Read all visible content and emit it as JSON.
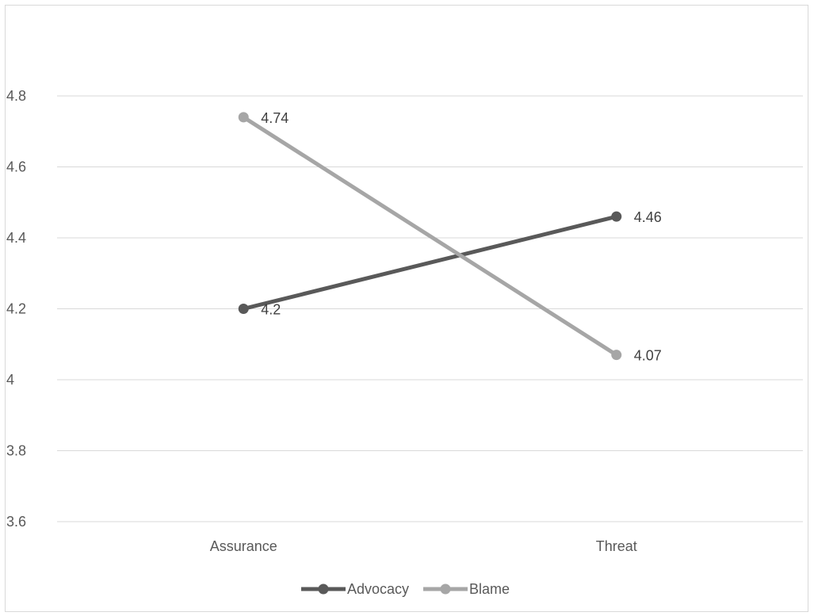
{
  "chart_data": {
    "type": "line",
    "title": "",
    "xlabel": "",
    "ylabel": "",
    "categories": [
      "Assurance",
      "Threat"
    ],
    "ylim": [
      3.6,
      4.8
    ],
    "ytick_step": 0.2,
    "yticks": [
      "3.6",
      "3.8",
      "4",
      "4.2",
      "4.4",
      "4.6",
      "4.8"
    ],
    "grid": true,
    "legend_position": "bottom",
    "series": [
      {
        "name": "Advocacy",
        "values": [
          4.2,
          4.46
        ],
        "labels": [
          "4.2",
          "4.46"
        ],
        "color": "#595959"
      },
      {
        "name": "Blame",
        "values": [
          4.74,
          4.07
        ],
        "labels": [
          "4.74",
          "4.07"
        ],
        "color": "#a6a6a6"
      }
    ]
  },
  "colors": {
    "gridline": "#d9d9d9",
    "border": "#d9d9d9",
    "text": "#595959"
  }
}
